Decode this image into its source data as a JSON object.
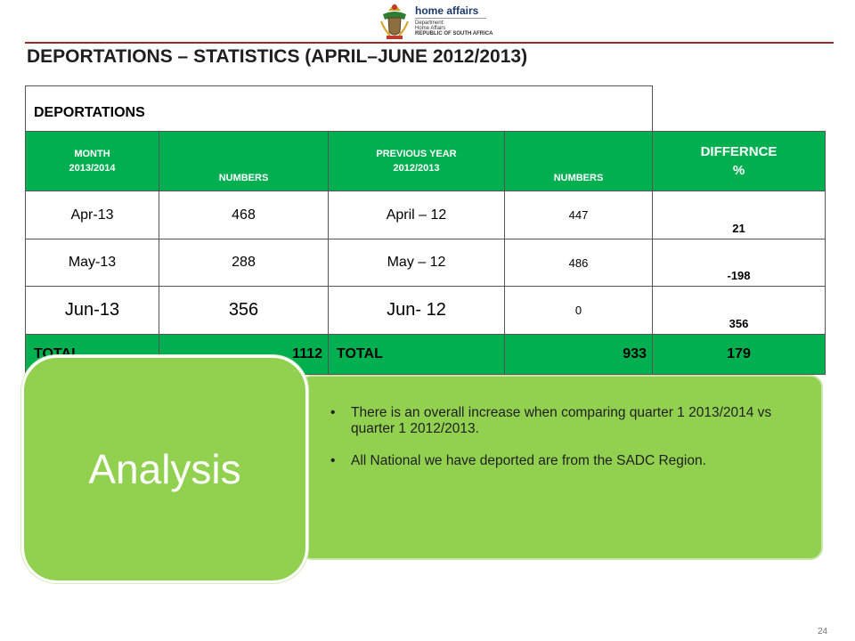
{
  "header": {
    "logo_icon": "coat-of-arms-icon",
    "logo_name": "home affairs",
    "logo_department": "Department:",
    "logo_sub1": "Home Affairs",
    "logo_sub2": "REPUBLIC OF SOUTH AFRICA",
    "rule_color": "#9b2a2a"
  },
  "title": "DEPORTATIONS – STATISTICS (APRIL–JUNE 2012/2013)",
  "table": {
    "caption": "DEPORTATIONS",
    "headers": {
      "month_line1": "MONTH",
      "month_line2": "2013/2014",
      "numbers": "NUMBERS",
      "prev_line1": "PREVIOUS YEAR",
      "prev_line2": "2012/2013",
      "numbers2": "NUMBERS",
      "diff_line1": "DIFFERNCE",
      "diff_line2": "%"
    },
    "rows": [
      {
        "month": "Apr-13",
        "numbers": "468",
        "prev_month": "April – 12",
        "prev_numbers": "447",
        "difference": "21"
      },
      {
        "month": "May-13",
        "numbers": "288",
        "prev_month": "May – 12",
        "prev_numbers": "486",
        "difference": "-198"
      },
      {
        "month": "Jun-13",
        "numbers": "356",
        "prev_month": "Jun- 12",
        "prev_numbers": "0",
        "difference": "356"
      }
    ],
    "total": {
      "label": "TOTAL",
      "numbers": "1112",
      "prev_label": "TOTAL",
      "prev_numbers": "933",
      "difference": "179"
    },
    "header_color": "#00b050"
  },
  "analysis": {
    "label": "Analysis",
    "bullets": [
      "There is an overall increase when comparing quarter 1 2013/2014 vs quarter 1 2012/2013.",
      "All National we have deported are from the SADC Region."
    ],
    "bullet_char": "•",
    "panel_color": "#92d050"
  },
  "page_number": "24"
}
